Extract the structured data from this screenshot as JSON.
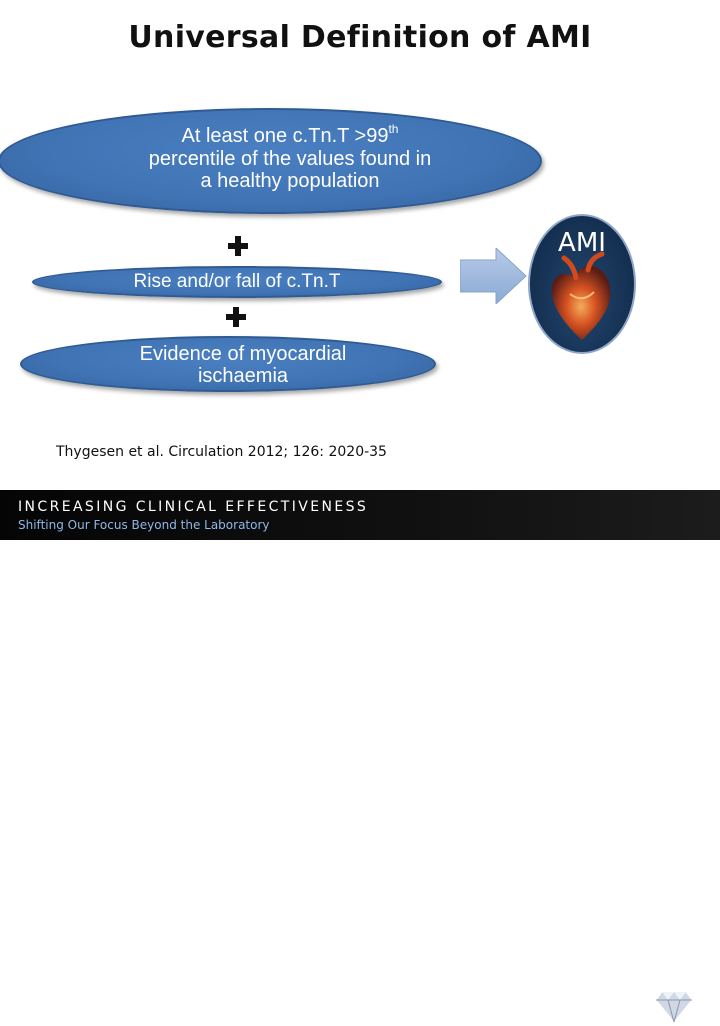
{
  "slide": {
    "title": "Universal Definition of AMI"
  },
  "criteria": [
    {
      "text_main": "At least one c.Tn.T  >99",
      "text_sup": "th",
      "text_rest": "percentile of the values found in",
      "text_line3": "a healthy population"
    },
    {
      "text": "Rise and/or fall of c.Tn.T"
    },
    {
      "text_line1": "Evidence of myocardial",
      "text_line2": "ischaemia"
    }
  ],
  "result": {
    "label": "AMI"
  },
  "citation": "Thygesen et al. Circulation 2012; 126: 2020-35",
  "footer": {
    "title": "INCREASING CLINICAL EFFECTIVENESS",
    "subtitle": "Shifting Our Focus Beyond the Laboratory"
  },
  "colors": {
    "ellipse_fill": "#3f73b4",
    "arrow_fill": "#9db8dd",
    "footer_bg": "#111111",
    "footer_sub": "#8fb8e8"
  },
  "icons": [
    "plus-icon",
    "arrow-right-icon",
    "heart-icon",
    "diamond-logo-icon"
  ]
}
